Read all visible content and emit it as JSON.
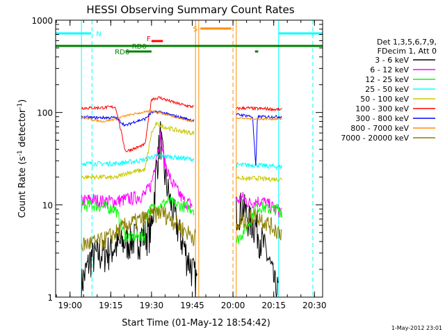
{
  "chart_data": {
    "type": "line",
    "title": "HESSI Observing Summary Count Rates",
    "xlabel": "Start Time (01-May-12 18:54:42)",
    "ylabel": "Count Rate (s",
    "ylabel_sup": "-1",
    "ylabel_tail": " detector",
    "ylabel_end": ")",
    "yscale": "log",
    "ylim": [
      1,
      1000
    ],
    "xlim": [
      18.9117,
      20.55
    ],
    "x_unit": "hours UT",
    "x_ticks": [
      {
        "v": 19.0,
        "label": "19:00"
      },
      {
        "v": 19.25,
        "label": "19:15"
      },
      {
        "v": 19.5,
        "label": "19:30"
      },
      {
        "v": 19.75,
        "label": "19:45"
      },
      {
        "v": 20.0,
        "label": "20:00"
      },
      {
        "v": 20.25,
        "label": "20:15"
      },
      {
        "v": 20.5,
        "label": "20:30"
      }
    ],
    "y_ticks": [
      {
        "v": 1,
        "label": "1"
      },
      {
        "v": 10,
        "label": "10"
      },
      {
        "v": 100,
        "label": "100"
      },
      {
        "v": 1000,
        "label": "1000"
      }
    ],
    "legend_header": [
      "Det 1,3,5,6,7,9,",
      "FDecim 1, Att 0"
    ],
    "legend_position": "right",
    "series": [
      {
        "name": "3 - 6 keV",
        "color": "#000000",
        "points": [
          [
            19.07,
            1.4
          ],
          [
            19.13,
            2.8
          ],
          [
            19.2,
            3.0
          ],
          [
            19.28,
            3.6
          ],
          [
            19.34,
            4.0
          ],
          [
            19.4,
            4.5
          ],
          [
            19.45,
            4.7
          ],
          [
            19.5,
            5.5
          ],
          [
            19.53,
            25
          ],
          [
            19.555,
            60
          ],
          [
            19.58,
            22
          ],
          [
            19.62,
            10
          ],
          [
            19.66,
            6
          ],
          [
            19.7,
            3.5
          ],
          [
            19.73,
            2.5
          ],
          [
            19.78,
            1.5
          ]
        ],
        "points2": [
          [
            20.02,
            9
          ],
          [
            20.06,
            10
          ],
          [
            20.1,
            7
          ],
          [
            20.14,
            6
          ],
          [
            20.18,
            4
          ],
          [
            20.22,
            2.5
          ],
          [
            20.26,
            1.3
          ],
          [
            20.28,
            1.2
          ]
        ]
      },
      {
        "name": "6 - 12 keV",
        "color": "#ff00ff",
        "points": [
          [
            19.07,
            11
          ],
          [
            19.13,
            11.5
          ],
          [
            19.2,
            11
          ],
          [
            19.28,
            11
          ],
          [
            19.34,
            11.5
          ],
          [
            19.4,
            12
          ],
          [
            19.46,
            13
          ],
          [
            19.5,
            17
          ],
          [
            19.53,
            35
          ],
          [
            19.555,
            55
          ],
          [
            19.58,
            30
          ],
          [
            19.62,
            18
          ],
          [
            19.66,
            14
          ],
          [
            19.7,
            11
          ],
          [
            19.75,
            10
          ]
        ],
        "points2": [
          [
            20.02,
            11
          ],
          [
            20.06,
            12
          ],
          [
            20.1,
            10.5
          ],
          [
            20.14,
            11
          ],
          [
            20.18,
            11
          ],
          [
            20.22,
            10
          ],
          [
            20.26,
            9
          ],
          [
            20.3,
            8.5
          ]
        ]
      },
      {
        "name": "12 - 25 keV",
        "color": "#00ff00",
        "points": [
          [
            19.07,
            9.5
          ],
          [
            19.13,
            10
          ],
          [
            19.2,
            9.5
          ],
          [
            19.28,
            9
          ],
          [
            19.34,
            4.5
          ],
          [
            19.4,
            4.5
          ],
          [
            19.46,
            4.6
          ],
          [
            19.47,
            8.5
          ],
          [
            19.52,
            9.5
          ],
          [
            19.56,
            10
          ],
          [
            19.6,
            11
          ],
          [
            19.66,
            10
          ],
          [
            19.72,
            9.5
          ],
          [
            19.76,
            9
          ]
        ],
        "points2": [
          [
            20.02,
            4
          ],
          [
            20.06,
            5
          ],
          [
            20.1,
            6.5
          ],
          [
            20.14,
            9.5
          ],
          [
            20.18,
            9.5
          ],
          [
            20.22,
            9
          ],
          [
            20.26,
            9
          ],
          [
            20.3,
            8.5
          ]
        ]
      },
      {
        "name": "25 - 50 keV",
        "color": "#00ffff",
        "points": [
          [
            19.07,
            28
          ],
          [
            19.13,
            28
          ],
          [
            19.2,
            28
          ],
          [
            19.28,
            28
          ],
          [
            19.35,
            29
          ],
          [
            19.42,
            30
          ],
          [
            19.46,
            31
          ],
          [
            19.5,
            33
          ],
          [
            19.56,
            34
          ],
          [
            19.62,
            33
          ],
          [
            19.7,
            32
          ],
          [
            19.76,
            31
          ]
        ],
        "points2": [
          [
            20.02,
            27
          ],
          [
            20.08,
            27
          ],
          [
            20.14,
            27
          ],
          [
            20.2,
            26.5
          ],
          [
            20.26,
            26
          ],
          [
            20.3,
            26
          ]
        ]
      },
      {
        "name": "50 - 100 keV",
        "color": "#c8c800",
        "points": [
          [
            19.07,
            20
          ],
          [
            19.13,
            20
          ],
          [
            19.2,
            20
          ],
          [
            19.28,
            19.5
          ],
          [
            19.34,
            22
          ],
          [
            19.4,
            23
          ],
          [
            19.46,
            24
          ],
          [
            19.5,
            60
          ],
          [
            19.53,
            75
          ],
          [
            19.58,
            70
          ],
          [
            19.64,
            65
          ],
          [
            19.7,
            62
          ],
          [
            19.76,
            60
          ]
        ],
        "points2": [
          [
            20.02,
            20
          ],
          [
            20.08,
            19
          ],
          [
            20.14,
            19.5
          ],
          [
            20.2,
            19
          ],
          [
            20.26,
            19
          ],
          [
            20.3,
            19
          ]
        ]
      },
      {
        "name": "100 - 300 keV",
        "color": "#ff0000",
        "points": [
          [
            19.07,
            112
          ],
          [
            19.13,
            112
          ],
          [
            19.2,
            113
          ],
          [
            19.28,
            115
          ],
          [
            19.34,
            38
          ],
          [
            19.4,
            41
          ],
          [
            19.46,
            45
          ],
          [
            19.5,
            140
          ],
          [
            19.55,
            145
          ],
          [
            19.6,
            135
          ],
          [
            19.66,
            125
          ],
          [
            19.72,
            118
          ],
          [
            19.76,
            115
          ]
        ],
        "points2": [
          [
            20.02,
            110
          ],
          [
            20.08,
            112
          ],
          [
            20.14,
            110
          ],
          [
            20.2,
            110
          ],
          [
            20.26,
            108
          ],
          [
            20.3,
            107
          ]
        ]
      },
      {
        "name": "300 - 800 keV",
        "color": "#0000ff",
        "points": [
          [
            19.07,
            90
          ],
          [
            19.13,
            88
          ],
          [
            19.2,
            88
          ],
          [
            19.28,
            88
          ],
          [
            19.34,
            72
          ],
          [
            19.4,
            80
          ],
          [
            19.46,
            85
          ],
          [
            19.5,
            100
          ],
          [
            19.55,
            102
          ],
          [
            19.6,
            96
          ],
          [
            19.66,
            90
          ],
          [
            19.72,
            85
          ],
          [
            19.76,
            82
          ]
        ],
        "points2": [
          [
            20.02,
            95
          ],
          [
            20.08,
            93
          ],
          [
            20.12,
            90
          ],
          [
            20.14,
            25
          ],
          [
            20.15,
            90
          ],
          [
            20.2,
            90
          ],
          [
            20.26,
            90
          ],
          [
            20.3,
            90
          ]
        ]
      },
      {
        "name": "800 - 7000 keV",
        "color": "#ff8c00",
        "points": [
          [
            19.07,
            90
          ],
          [
            19.13,
            84
          ],
          [
            19.2,
            80
          ],
          [
            19.28,
            85
          ],
          [
            19.34,
            92
          ],
          [
            19.4,
            97
          ],
          [
            19.46,
            101
          ],
          [
            19.5,
            104
          ],
          [
            19.55,
            100
          ],
          [
            19.6,
            94
          ],
          [
            19.66,
            88
          ],
          [
            19.72,
            82
          ],
          [
            19.76,
            80
          ]
        ],
        "points2": [
          [
            20.02,
            88
          ],
          [
            20.08,
            86
          ],
          [
            20.14,
            85
          ],
          [
            20.2,
            85
          ],
          [
            20.26,
            85
          ],
          [
            20.3,
            85
          ]
        ]
      },
      {
        "name": "7000 - 20000 keV",
        "color": "#8b7d00",
        "points": [
          [
            19.07,
            3.7
          ],
          [
            19.13,
            3.9
          ],
          [
            19.2,
            4.1
          ],
          [
            19.28,
            5.0
          ],
          [
            19.34,
            6.0
          ],
          [
            19.4,
            6.6
          ],
          [
            19.46,
            7.2
          ],
          [
            19.5,
            7.7
          ],
          [
            19.56,
            8.5
          ],
          [
            19.62,
            7.2
          ],
          [
            19.68,
            5.7
          ],
          [
            19.74,
            4.8
          ],
          [
            19.77,
            4.5
          ]
        ],
        "points2": [
          [
            20.02,
            5.5
          ],
          [
            20.06,
            6.5
          ],
          [
            20.1,
            7.2
          ],
          [
            20.14,
            7.8
          ],
          [
            20.18,
            7.0
          ],
          [
            20.22,
            6.2
          ],
          [
            20.26,
            5.5
          ],
          [
            20.3,
            5.0
          ]
        ]
      }
    ],
    "annotations": {
      "N": {
        "label": "N",
        "color": "#00ffff"
      },
      "F": {
        "label": "F",
        "color": "#ff0000"
      },
      "S": {
        "label": "S",
        "color": "#ff8c00"
      },
      "RD0": {
        "label": "RD0",
        "color": "#008000"
      },
      "RD6": {
        "label": "RD6",
        "color": "#008000"
      }
    },
    "footer_date": "1-May-2012 23:01"
  }
}
